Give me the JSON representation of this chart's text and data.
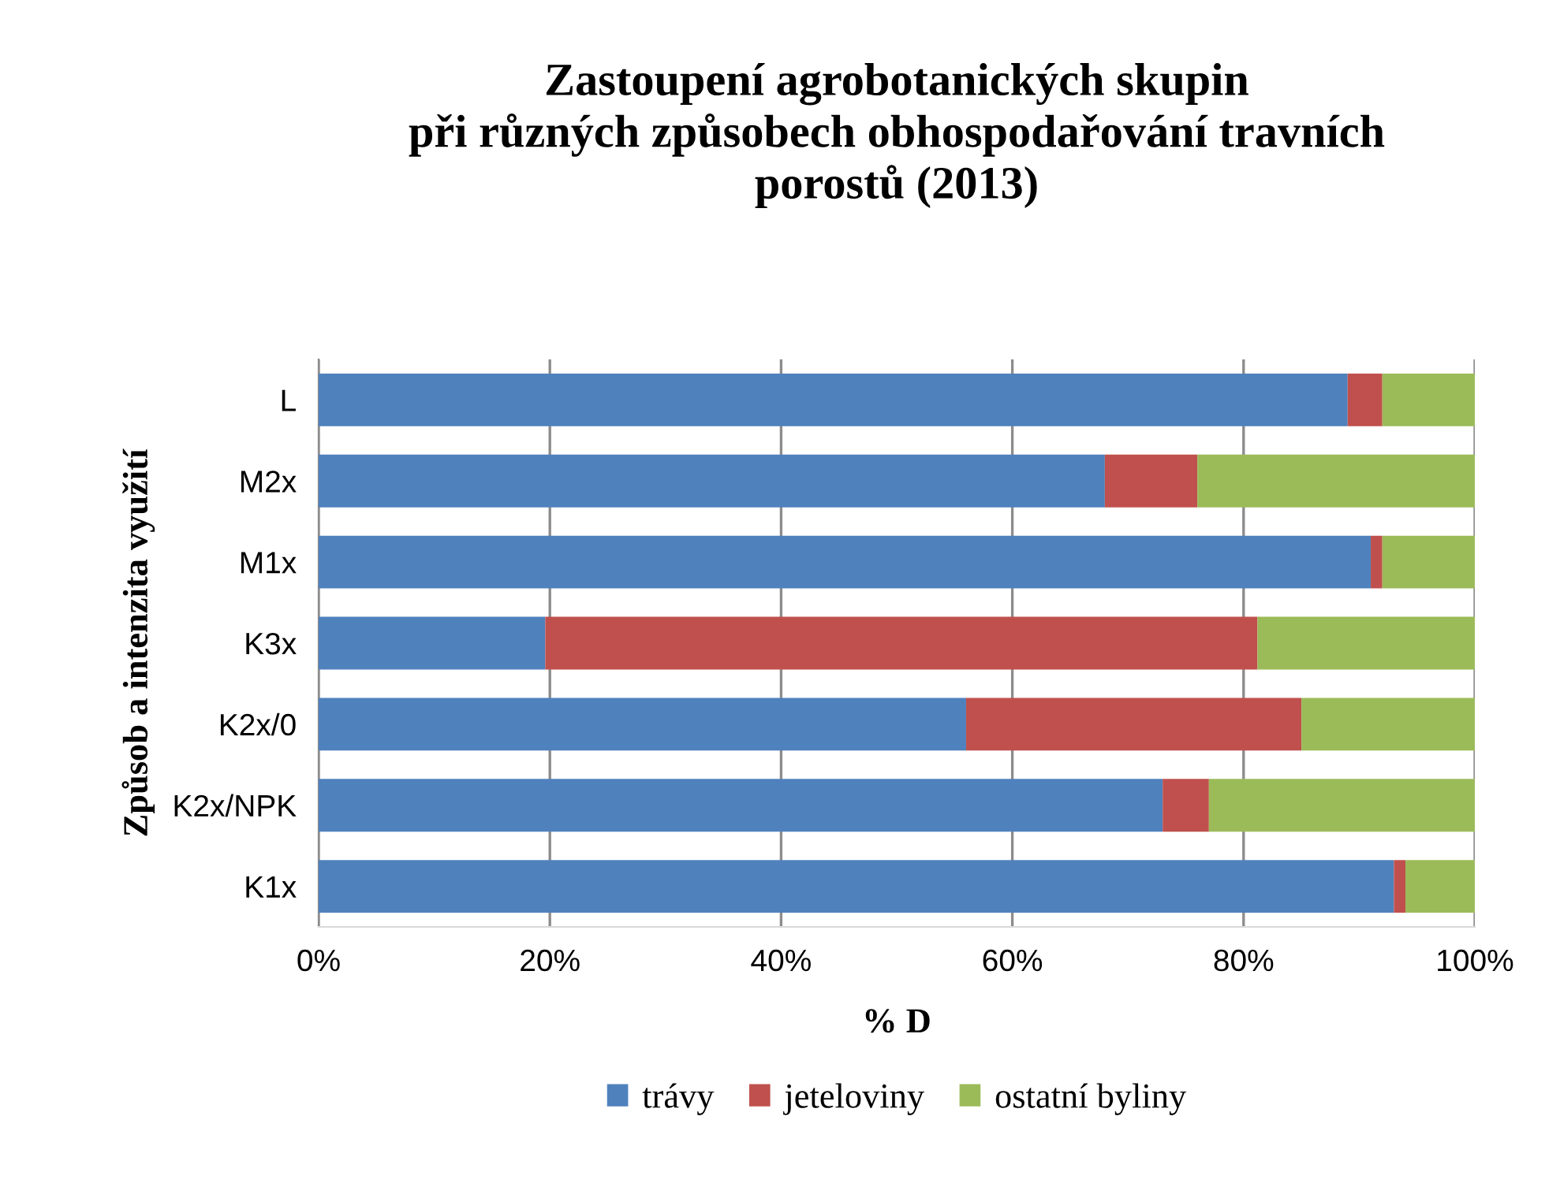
{
  "chart_data": {
    "type": "bar",
    "orientation": "horizontal",
    "stacked": true,
    "title": "Zastoupení agrobotanických skupin\npři různých způsobech obhospodařování travních\nporostů (2013)",
    "xlabel": "% D",
    "ylabel": "Způsob a intenzita využití",
    "categories": [
      "L",
      "M2x",
      "M1x",
      "K3x",
      "K2x/0",
      "K2x/NPK",
      "K1x"
    ],
    "series": [
      {
        "name": "trávy",
        "color": "#4f81bd",
        "values": [
          89,
          68,
          91,
          19.6,
          56,
          73,
          93
        ]
      },
      {
        "name": "jeteloviny",
        "color": "#c0504d",
        "values": [
          3,
          8,
          1,
          61.6,
          29,
          4,
          1
        ]
      },
      {
        "name": "ostatní byliny",
        "color": "#9bbb59",
        "values": [
          8,
          24,
          8,
          18.8,
          15,
          23,
          6
        ]
      }
    ],
    "xlim": [
      0,
      100
    ],
    "xticks": [
      {
        "value": 0,
        "label": "0%"
      },
      {
        "value": 20,
        "label": "20%"
      },
      {
        "value": 40,
        "label": "40%"
      },
      {
        "value": 60,
        "label": "60%"
      },
      {
        "value": 80,
        "label": "80%"
      },
      {
        "value": 100,
        "label": "100%"
      }
    ],
    "grid": "x",
    "legend": "bottom"
  }
}
